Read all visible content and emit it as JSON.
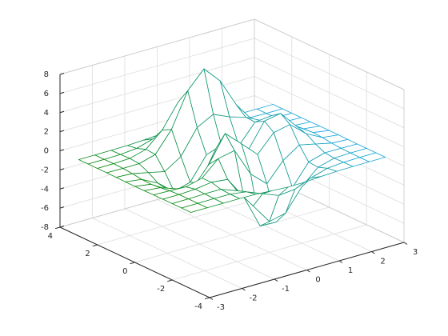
{
  "chart_data": {
    "type": "mesh3d",
    "x": [
      -3,
      -2.5,
      -2,
      -1.5,
      -1,
      -0.5,
      0,
      0.5,
      1,
      1.5,
      2,
      2.5,
      3
    ],
    "y": [
      -3,
      -2.5,
      -2,
      -1.5,
      -1,
      -0.5,
      0,
      0.5,
      1,
      1.5,
      2,
      2.5,
      3
    ],
    "z": [
      [
        0,
        0,
        0,
        0,
        -0.03,
        -0.14,
        -0.24,
        -0.22,
        -0.11,
        -0.03,
        -0.01,
        0,
        0
      ],
      [
        0,
        0,
        0.02,
        0,
        -0.23,
        -0.91,
        -1.57,
        -1.4,
        -0.69,
        -0.18,
        -0.03,
        0,
        0
      ],
      [
        0,
        0.01,
        0.05,
        0.05,
        -0.58,
        -2.65,
        -4.76,
        -4.36,
        -2.09,
        -0.53,
        -0.06,
        0,
        0
      ],
      [
        0,
        0,
        0.08,
        0.33,
        0.14,
        -2.18,
        -5.68,
        -5.76,
        -2.64,
        -0.44,
        0.04,
        0.03,
        0
      ],
      [
        -0.01,
        -0.06,
        -0.13,
        0.3,
        1.86,
        2.22,
        -0.72,
        -2.22,
        -0.27,
        0.88,
        0.5,
        0.11,
        0.01
      ],
      [
        -0.03,
        -0.2,
        -0.8,
        -1.21,
        0.8,
        3.55,
        2.0,
        0.39,
        2.2,
        2.56,
        1.12,
        0.24,
        0.03
      ],
      [
        -0.04,
        -0.3,
        -1.33,
        -2.77,
        -1.65,
        1.48,
        0.98,
        0.37,
        2.94,
        3.27,
        1.41,
        0.3,
        0.03
      ],
      [
        -0.03,
        -0.25,
        -1.12,
        -2.49,
        -1.99,
        0.39,
        0.46,
        0.38,
        2.38,
        2.56,
        1.1,
        0.23,
        0.03
      ],
      [
        -0.01,
        -0.11,
        -0.48,
        -0.86,
        0.23,
        2.79,
        3.69,
        2.94,
        2.43,
        1.58,
        0.58,
        0.11,
        0.01
      ],
      [
        0,
        -0.02,
        -0.01,
        0.47,
        2.62,
        6.19,
        7.99,
        6.25,
        3.26,
        1.18,
        0.29,
        0.05,
        0
      ],
      [
        0,
        0.01,
        0.08,
        0.55,
        2.08,
        4.57,
        5.86,
        4.58,
        2.2,
        0.68,
        0.13,
        0.02,
        0
      ],
      [
        0,
        0,
        0.03,
        0.19,
        0.69,
        1.46,
        1.88,
        1.47,
        0.7,
        0.2,
        0.04,
        0,
        0
      ],
      [
        0,
        0,
        0.01,
        0.03,
        0.11,
        0.23,
        0.3,
        0.23,
        0.11,
        0.03,
        0.01,
        0,
        0
      ]
    ],
    "xlim": [
      -3,
      3
    ],
    "ylim": [
      -4,
      4
    ],
    "zlim": [
      -8,
      8
    ],
    "xticks": [
      -3,
      -2,
      -1,
      0,
      1,
      2,
      3
    ],
    "yticks": [
      -4,
      -2,
      0,
      2,
      4
    ],
    "zticks": [
      -8,
      -6,
      -4,
      -2,
      0,
      2,
      4,
      6,
      8
    ],
    "grid": true,
    "edge_colors": [
      "#0a8a0a",
      "#1aa6e6"
    ]
  }
}
